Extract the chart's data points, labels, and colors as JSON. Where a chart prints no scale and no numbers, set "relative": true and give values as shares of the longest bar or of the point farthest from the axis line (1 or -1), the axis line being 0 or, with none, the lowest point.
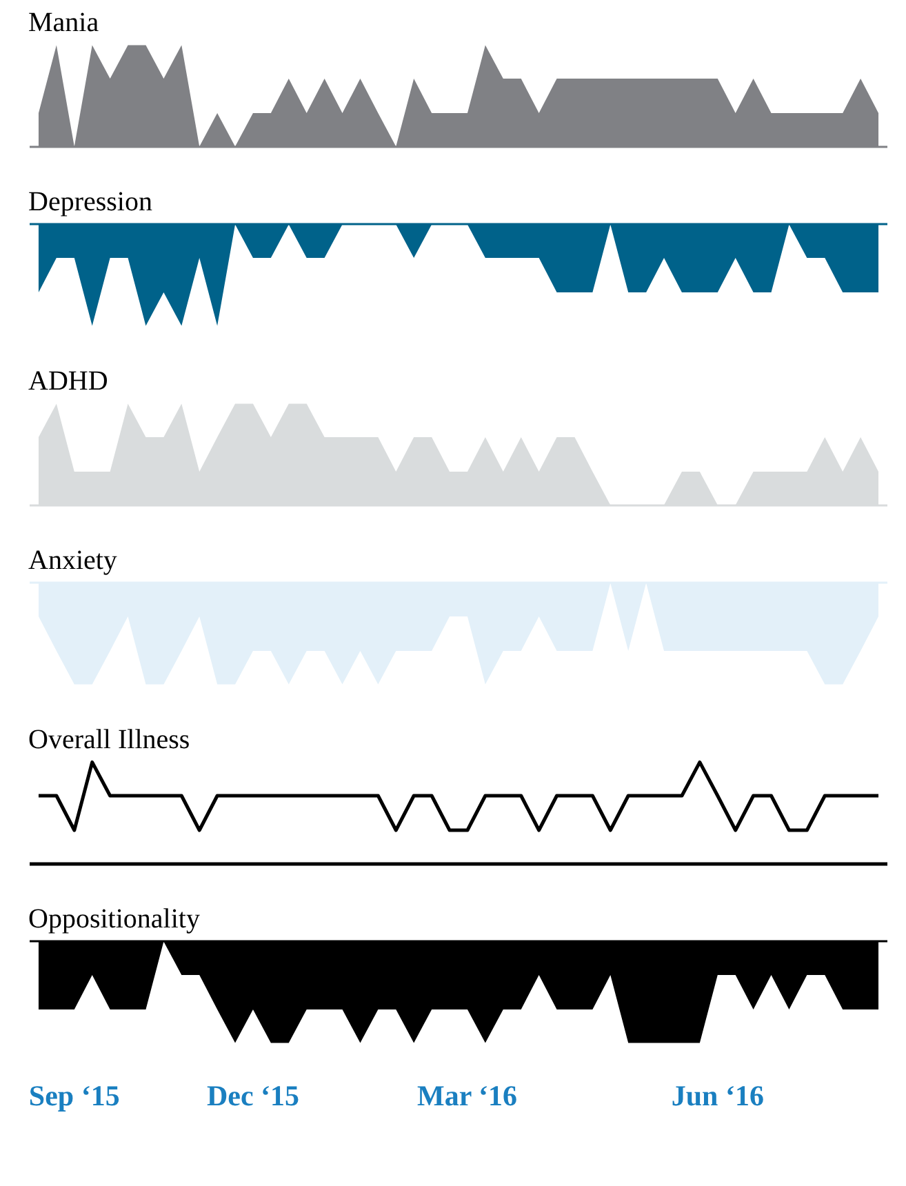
{
  "chart_data": [
    {
      "type": "area",
      "title": "Mania",
      "relative": true,
      "color": "#808185",
      "tick_labels": false,
      "categories": [
        null,
        null,
        null,
        null,
        null,
        null,
        null,
        null,
        null,
        null,
        null,
        null,
        null,
        null,
        null,
        null,
        null,
        null,
        null,
        null,
        null,
        null,
        null,
        null,
        null,
        null,
        null,
        null,
        null,
        null,
        null,
        null,
        null,
        null,
        null,
        null,
        null,
        null,
        null,
        null,
        null,
        null,
        null,
        null,
        null,
        null,
        null,
        null
      ],
      "values": [
        0.33,
        1,
        0,
        1,
        0.67,
        1,
        1,
        0.67,
        1,
        0,
        0.33,
        0,
        0.33,
        0.33,
        0.67,
        0.33,
        0.67,
        0.33,
        0.67,
        0.33,
        0,
        0.67,
        0.33,
        0.33,
        0.33,
        1,
        0.67,
        0.67,
        0.33,
        0.67,
        0.67,
        0.67,
        0.67,
        0.67,
        0.67,
        0.67,
        0.67,
        0.67,
        0.67,
        0.33,
        0.67,
        0.33,
        0.33,
        0.33,
        0.33,
        0.33,
        0.67,
        0.33
      ]
    },
    {
      "type": "area",
      "title": "Depression",
      "relative": true,
      "color": "#00628a",
      "tick_labels": false,
      "categories": [
        null,
        null,
        null,
        null,
        null,
        null,
        null,
        null,
        null,
        null,
        null,
        null,
        null,
        null,
        null,
        null,
        null,
        null,
        null,
        null,
        null,
        null,
        null,
        null,
        null,
        null,
        null,
        null,
        null,
        null,
        null,
        null,
        null,
        null,
        null,
        null,
        null,
        null,
        null,
        null,
        null,
        null,
        null,
        null,
        null,
        null,
        null,
        null
      ],
      "values": [
        -0.67,
        -0.33,
        -0.33,
        -1,
        -0.33,
        -0.33,
        -1,
        -0.67,
        -1,
        -0.33,
        -1,
        0,
        -0.33,
        -0.33,
        0,
        -0.33,
        -0.33,
        0,
        0,
        0,
        0,
        -0.33,
        0,
        0,
        0,
        -0.33,
        -0.33,
        -0.33,
        -0.33,
        -0.67,
        -0.67,
        -0.67,
        0,
        -0.67,
        -0.67,
        -0.33,
        -0.67,
        -0.67,
        -0.67,
        -0.33,
        -0.67,
        -0.67,
        0,
        -0.33,
        -0.33,
        -0.67,
        -0.67,
        -0.67
      ]
    },
    {
      "type": "area",
      "title": "ADHD",
      "relative": true,
      "color": "#d9dcdd",
      "tick_labels": false,
      "categories": [
        null,
        null,
        null,
        null,
        null,
        null,
        null,
        null,
        null,
        null,
        null,
        null,
        null,
        null,
        null,
        null,
        null,
        null,
        null,
        null,
        null,
        null,
        null,
        null,
        null,
        null,
        null,
        null,
        null,
        null,
        null,
        null,
        null,
        null,
        null,
        null,
        null,
        null,
        null,
        null,
        null,
        null,
        null,
        null,
        null,
        null,
        null,
        null
      ],
      "values": [
        0.67,
        1,
        0.33,
        0.33,
        0.33,
        1,
        0.67,
        0.67,
        1,
        0.33,
        0.67,
        1,
        1,
        0.67,
        1,
        1,
        0.67,
        0.67,
        0.67,
        0.67,
        0.33,
        0.67,
        0.67,
        0.33,
        0.33,
        0.67,
        0.33,
        0.67,
        0.33,
        0.67,
        0.67,
        0.33,
        0,
        0,
        0,
        0,
        0.33,
        0.33,
        0,
        0,
        0.33,
        0.33,
        0.33,
        0.33,
        0.67,
        0.33,
        0.67,
        0.33
      ]
    },
    {
      "type": "area",
      "title": "Anxiety",
      "relative": true,
      "color": "#e3f0f9",
      "tick_labels": false,
      "categories": [
        null,
        null,
        null,
        null,
        null,
        null,
        null,
        null,
        null,
        null,
        null,
        null,
        null,
        null,
        null,
        null,
        null,
        null,
        null,
        null,
        null,
        null,
        null,
        null,
        null,
        null,
        null,
        null,
        null,
        null,
        null,
        null,
        null,
        null,
        null,
        null,
        null,
        null,
        null,
        null,
        null,
        null,
        null,
        null,
        null,
        null,
        null,
        null
      ],
      "values": [
        -0.33,
        -0.67,
        -1,
        -1,
        -0.67,
        -0.33,
        -1,
        -1,
        -0.67,
        -0.33,
        -1,
        -1,
        -0.67,
        -0.67,
        -1,
        -0.67,
        -0.67,
        -1,
        -0.67,
        -1,
        -0.67,
        -0.67,
        -0.67,
        -0.33,
        -0.33,
        -1,
        -0.67,
        -0.67,
        -0.33,
        -0.67,
        -0.67,
        -0.67,
        0,
        -0.67,
        0,
        -0.67,
        -0.67,
        -0.67,
        -0.67,
        -0.67,
        -0.67,
        -0.67,
        -0.67,
        -0.67,
        -1,
        -1,
        -0.67,
        -0.33
      ]
    },
    {
      "type": "line",
      "title": "Overall Illness",
      "relative": true,
      "color": "#000000",
      "tick_labels": false,
      "categories": [
        null,
        null,
        null,
        null,
        null,
        null,
        null,
        null,
        null,
        null,
        null,
        null,
        null,
        null,
        null,
        null,
        null,
        null,
        null,
        null,
        null,
        null,
        null,
        null,
        null,
        null,
        null,
        null,
        null,
        null,
        null,
        null,
        null,
        null,
        null,
        null,
        null,
        null,
        null,
        null,
        null,
        null,
        null,
        null,
        null,
        null,
        null,
        null
      ],
      "values": [
        0.67,
        0.67,
        0.33,
        1,
        0.67,
        0.67,
        0.67,
        0.67,
        0.67,
        0.33,
        0.67,
        0.67,
        0.67,
        0.67,
        0.67,
        0.67,
        0.67,
        0.67,
        0.67,
        0.67,
        0.33,
        0.67,
        0.67,
        0.33,
        0.33,
        0.67,
        0.67,
        0.67,
        0.33,
        0.67,
        0.67,
        0.67,
        0.33,
        0.67,
        0.67,
        0.67,
        0.67,
        1,
        0.67,
        0.33,
        0.67,
        0.67,
        0.33,
        0.33,
        0.67,
        0.67,
        0.67,
        0.67
      ]
    },
    {
      "type": "area",
      "title": "Oppositionality",
      "relative": true,
      "color": "#000000",
      "tick_labels": "x",
      "categories": [
        null,
        null,
        "Sep ‘15",
        null,
        null,
        null,
        null,
        null,
        null,
        null,
        null,
        null,
        "Dec ‘15",
        null,
        null,
        null,
        null,
        null,
        null,
        null,
        null,
        null,
        null,
        null,
        "Mar ‘16",
        null,
        null,
        null,
        null,
        null,
        null,
        null,
        null,
        null,
        null,
        null,
        null,
        null,
        "Jun ‘16",
        null,
        null,
        null,
        null,
        null,
        null,
        null,
        null,
        null
      ],
      "values": [
        -0.67,
        -0.67,
        -0.67,
        -0.33,
        -0.67,
        -0.67,
        -0.67,
        0,
        -0.33,
        -0.33,
        -0.67,
        -1,
        -0.67,
        -1,
        -1,
        -0.67,
        -0.67,
        -0.67,
        -1,
        -0.67,
        -0.67,
        -1,
        -0.67,
        -0.67,
        -0.67,
        -1,
        -0.67,
        -0.67,
        -0.33,
        -0.67,
        -0.67,
        -0.67,
        -0.33,
        -1,
        -1,
        -1,
        -1,
        -1,
        -0.33,
        -0.33,
        -0.67,
        -0.33,
        -0.67,
        -0.33,
        -0.33,
        -0.67,
        -0.67,
        -0.67
      ]
    }
  ]
}
